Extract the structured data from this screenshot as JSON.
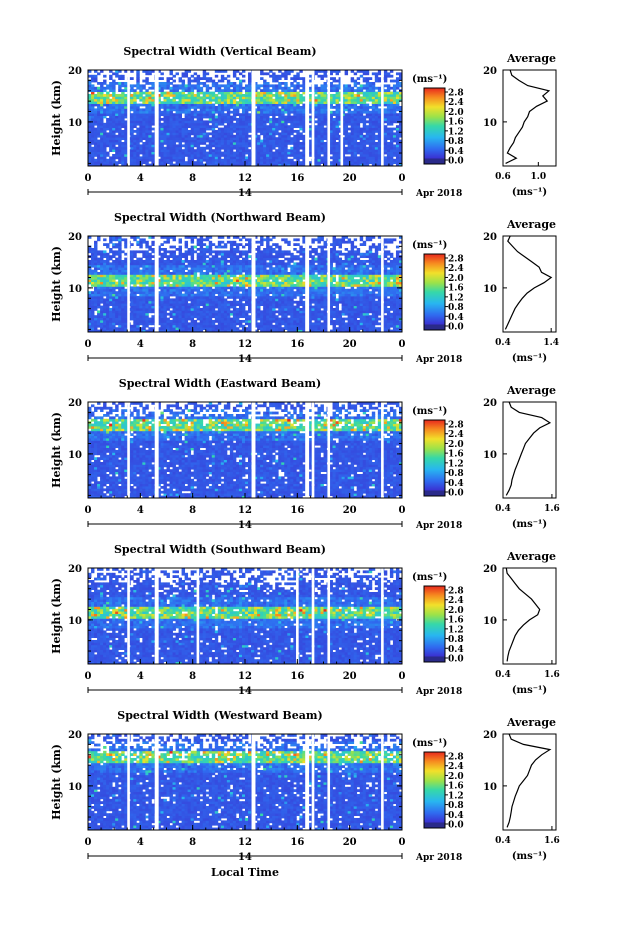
{
  "chart_data": [
    {
      "type": "heatmap",
      "title": "Spectral Width (Vertical Beam)",
      "ylabel": "Height (km)",
      "xlabel": "",
      "date_label": "Apr 2018",
      "x_ticks": [
        "0",
        "4",
        "8",
        "12",
        "16",
        "20",
        "0"
      ],
      "x_sublabel": "14",
      "xlim": [
        0,
        24
      ],
      "y_ticks": [
        "20",
        "10"
      ],
      "ylim": [
        1.5,
        20
      ],
      "colorbar": {
        "unit": "(ms⁻¹)",
        "ticks": [
          "2.8",
          "2.4",
          "2.0",
          "1.6",
          "1.2",
          "0.8",
          "0.4",
          "0.0"
        ],
        "range": [
          0,
          2.8
        ]
      },
      "data_gaps_hours": [
        [
          3.0,
          3.2
        ],
        [
          5.1,
          5.4
        ],
        [
          12.5,
          12.8
        ],
        [
          16.6,
          16.9
        ],
        [
          17.1,
          17.3
        ],
        [
          18.3,
          18.5
        ],
        [
          19.3,
          19.5
        ],
        [
          22.4,
          22.6
        ]
      ],
      "profile": {
        "title": "Average",
        "xlabel": "(ms⁻¹)",
        "x_ticks": [
          "0.6",
          "1.0"
        ],
        "xlim": [
          0.6,
          1.2
        ],
        "y_ticks": [
          "20",
          "10"
        ],
        "heights": [
          2,
          3,
          4,
          5,
          6,
          7,
          8,
          9,
          10,
          11,
          12,
          13,
          14,
          15,
          16,
          17,
          18,
          19,
          20
        ],
        "values": [
          0.63,
          0.75,
          0.65,
          0.68,
          0.72,
          0.74,
          0.78,
          0.82,
          0.84,
          0.88,
          0.9,
          0.98,
          1.1,
          1.05,
          1.12,
          0.88,
          0.78,
          0.7,
          0.68
        ]
      }
    },
    {
      "type": "heatmap",
      "title": "Spectral Width (Northward Beam)",
      "ylabel": "Height (km)",
      "xlabel": "",
      "date_label": "Apr 2018",
      "x_ticks": [
        "0",
        "4",
        "8",
        "12",
        "16",
        "20",
        "0"
      ],
      "x_sublabel": "14",
      "xlim": [
        0,
        24
      ],
      "y_ticks": [
        "20",
        "10"
      ],
      "ylim": [
        1.5,
        20
      ],
      "colorbar": {
        "unit": "(ms⁻¹)",
        "ticks": [
          "2.8",
          "2.4",
          "2.0",
          "1.6",
          "1.2",
          "0.8",
          "0.4",
          "0.0"
        ],
        "range": [
          0,
          2.8
        ]
      },
      "data_gaps_hours": [
        [
          3.0,
          3.2
        ],
        [
          5.1,
          5.4
        ],
        [
          12.5,
          12.8
        ],
        [
          16.6,
          16.9
        ],
        [
          18.3,
          18.5
        ],
        [
          22.4,
          22.6
        ]
      ],
      "profile": {
        "title": "Average",
        "xlabel": "(ms⁻¹)",
        "x_ticks": [
          "0.4",
          "1.4"
        ],
        "xlim": [
          0.4,
          1.5
        ],
        "y_ticks": [
          "20",
          "10"
        ],
        "heights": [
          2,
          3,
          4,
          5,
          6,
          7,
          8,
          9,
          10,
          11,
          12,
          13,
          14,
          15,
          16,
          17,
          18,
          19,
          20
        ],
        "values": [
          0.45,
          0.5,
          0.55,
          0.6,
          0.65,
          0.72,
          0.8,
          0.9,
          1.05,
          1.25,
          1.4,
          1.2,
          1.15,
          1.0,
          0.85,
          0.7,
          0.6,
          0.5,
          0.55
        ]
      }
    },
    {
      "type": "heatmap",
      "title": "Spectral Width (Eastward Beam)",
      "ylabel": "Height (km)",
      "xlabel": "",
      "date_label": "Apr 2018",
      "x_ticks": [
        "0",
        "4",
        "8",
        "12",
        "16",
        "20",
        "0"
      ],
      "x_sublabel": "14",
      "xlim": [
        0,
        24
      ],
      "y_ticks": [
        "20",
        "10"
      ],
      "ylim": [
        1.5,
        20
      ],
      "colorbar": {
        "unit": "(ms⁻¹)",
        "ticks": [
          "2.8",
          "2.4",
          "2.0",
          "1.6",
          "1.2",
          "0.8",
          "0.4",
          "0.0"
        ],
        "range": [
          0,
          2.8
        ]
      },
      "data_gaps_hours": [
        [
          3.0,
          3.2
        ],
        [
          5.1,
          5.4
        ],
        [
          12.5,
          12.8
        ],
        [
          16.6,
          16.9
        ],
        [
          17.1,
          17.3
        ],
        [
          18.3,
          18.5
        ],
        [
          22.4,
          22.6
        ]
      ],
      "profile": {
        "title": "Average",
        "xlabel": "(ms⁻¹)",
        "x_ticks": [
          "0.4",
          "1.6"
        ],
        "xlim": [
          0.4,
          1.7
        ],
        "y_ticks": [
          "20",
          "10"
        ],
        "heights": [
          2,
          3,
          4,
          5,
          6,
          7,
          8,
          9,
          10,
          11,
          12,
          13,
          14,
          15,
          16,
          17,
          18,
          19,
          20
        ],
        "values": [
          0.48,
          0.55,
          0.6,
          0.62,
          0.66,
          0.7,
          0.75,
          0.8,
          0.85,
          0.9,
          0.95,
          1.05,
          1.15,
          1.3,
          1.55,
          1.35,
          0.8,
          0.6,
          0.55
        ]
      }
    },
    {
      "type": "heatmap",
      "title": "Spectral Width (Southward Beam)",
      "ylabel": "Height (km)",
      "xlabel": "",
      "date_label": "Apr 2018",
      "x_ticks": [
        "0",
        "4",
        "8",
        "12",
        "16",
        "20",
        "0"
      ],
      "x_sublabel": "14",
      "xlim": [
        0,
        24
      ],
      "y_ticks": [
        "20",
        "10"
      ],
      "ylim": [
        1.5,
        20
      ],
      "colorbar": {
        "unit": "(ms⁻¹)",
        "ticks": [
          "2.8",
          "2.4",
          "2.0",
          "1.6",
          "1.2",
          "0.8",
          "0.4",
          "0.0"
        ],
        "range": [
          0,
          2.8
        ]
      },
      "data_gaps_hours": [
        [
          3.0,
          3.2
        ],
        [
          5.1,
          5.4
        ],
        [
          8.3,
          8.5
        ],
        [
          15.9,
          16.1
        ],
        [
          17.1,
          17.3
        ],
        [
          18.3,
          18.5
        ],
        [
          22.4,
          22.6
        ]
      ],
      "profile": {
        "title": "Average",
        "xlabel": "(ms⁻¹)",
        "x_ticks": [
          "0.4",
          "1.6"
        ],
        "xlim": [
          0.4,
          1.7
        ],
        "y_ticks": [
          "20",
          "10"
        ],
        "heights": [
          2,
          3,
          4,
          5,
          6,
          7,
          8,
          9,
          10,
          11,
          12,
          13,
          14,
          15,
          16,
          17,
          18,
          19,
          20
        ],
        "values": [
          0.5,
          0.52,
          0.55,
          0.6,
          0.65,
          0.7,
          0.78,
          0.9,
          1.05,
          1.25,
          1.3,
          1.2,
          1.1,
          0.95,
          0.8,
          0.7,
          0.6,
          0.5,
          0.48
        ]
      }
    },
    {
      "type": "heatmap",
      "title": "Spectral Width (Westward Beam)",
      "ylabel": "Height (km)",
      "xlabel": "Local Time",
      "date_label": "Apr 2018",
      "x_ticks": [
        "0",
        "4",
        "8",
        "12",
        "16",
        "20",
        "0"
      ],
      "x_sublabel": "14",
      "xlim": [
        0,
        24
      ],
      "y_ticks": [
        "20",
        "10"
      ],
      "ylim": [
        1.5,
        20
      ],
      "colorbar": {
        "unit": "(ms⁻¹)",
        "ticks": [
          "2.8",
          "2.4",
          "2.0",
          "1.6",
          "1.2",
          "0.8",
          "0.4",
          "0.0"
        ],
        "range": [
          0,
          2.8
        ]
      },
      "data_gaps_hours": [
        [
          3.0,
          3.2
        ],
        [
          5.1,
          5.4
        ],
        [
          12.5,
          12.8
        ],
        [
          16.6,
          16.9
        ],
        [
          17.1,
          17.3
        ],
        [
          18.3,
          18.5
        ],
        [
          22.4,
          22.6
        ]
      ],
      "profile": {
        "title": "Average",
        "xlabel": "(ms⁻¹)",
        "x_ticks": [
          "0.4",
          "1.6"
        ],
        "xlim": [
          0.4,
          1.7
        ],
        "y_ticks": [
          "20",
          "10"
        ],
        "heights": [
          2,
          3,
          4,
          5,
          6,
          7,
          8,
          9,
          10,
          11,
          12,
          13,
          14,
          15,
          16,
          17,
          18,
          19,
          20
        ],
        "values": [
          0.5,
          0.55,
          0.58,
          0.6,
          0.62,
          0.66,
          0.7,
          0.75,
          0.8,
          0.9,
          1.0,
          1.05,
          1.1,
          1.2,
          1.35,
          1.55,
          0.9,
          0.6,
          0.55
        ]
      }
    }
  ]
}
